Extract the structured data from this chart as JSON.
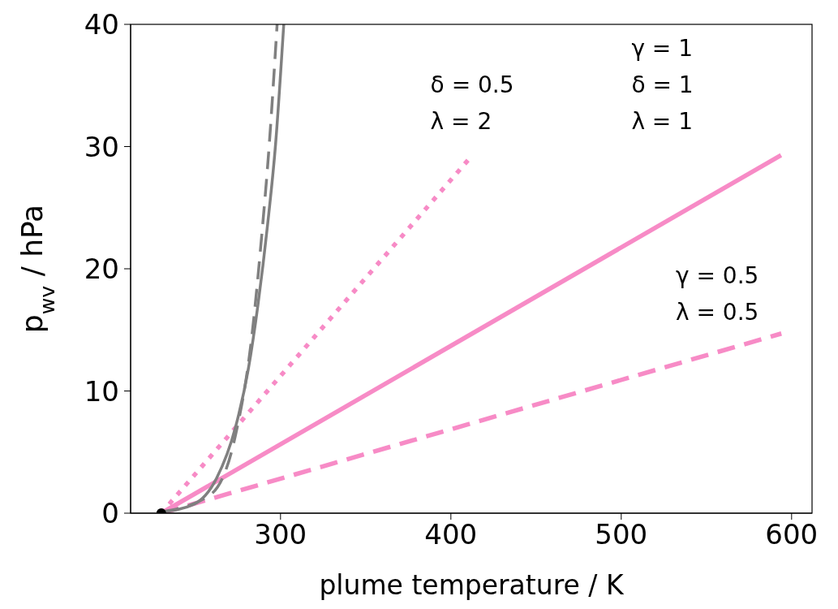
{
  "chart_data": {
    "type": "line",
    "xlabel": "plume temperature / K",
    "ylabel": "p$_{wv}$ / hPa",
    "xlim": [
      212,
      612
    ],
    "ylim": [
      0,
      40
    ],
    "xticks": [
      300,
      400,
      500,
      600
    ],
    "yticks": [
      0,
      10,
      20,
      30,
      40
    ],
    "series": [
      {
        "color": "#808080",
        "line_style": "solid",
        "x": [
          230,
          249.3,
          262.4,
          273.6,
          281.1,
          286.7,
          292.4,
          297.1,
          301.9
        ],
        "values": [
          0.1,
          0.74,
          2.84,
          7.05,
          11.8,
          17.0,
          23.6,
          30.2,
          40
        ]
      },
      {
        "color": "#808080",
        "line_style": "dashed",
        "x": [
          230,
          258.7,
          273.6,
          283.1,
          288.7,
          293.4,
          298
        ],
        "values": [
          0.1,
          1.5,
          6.4,
          14.4,
          22.3,
          30.2,
          40
        ]
      },
      {
        "color": "#f78bc6",
        "line_style": "dotted",
        "x": [
          230,
          411.4
        ],
        "values": [
          0,
          29.1
        ]
      },
      {
        "color": "#f78bc6",
        "line_style": "solid",
        "x": [
          230,
          593.8
        ],
        "values": [
          0,
          29.3
        ]
      },
      {
        "color": "#f78bc6",
        "line_style": "dashed",
        "x": [
          230,
          594
        ],
        "values": [
          0,
          14.7
        ]
      },
      {
        "type": "scatter",
        "color": "#000000",
        "marker": "circle",
        "x": [
          230
        ],
        "values": [
          0
        ]
      }
    ],
    "annotations": [
      "δ = 0.5\nλ = 2",
      "γ = 1\nδ = 1\nλ = 1",
      "γ = 0.5\nλ = 0.5"
    ]
  }
}
